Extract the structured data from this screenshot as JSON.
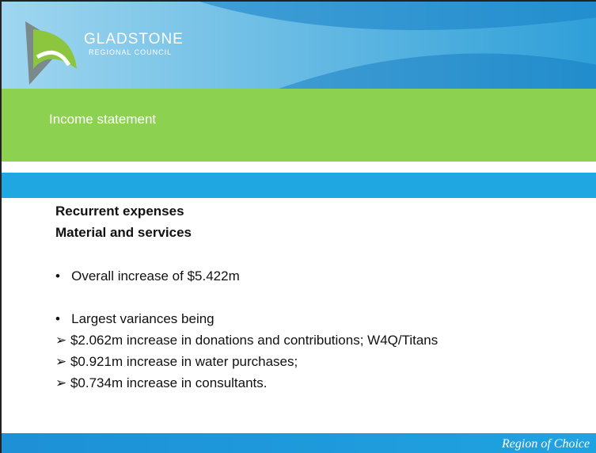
{
  "header": {
    "org_name": "GLADSTONE",
    "org_subtitle": "REGIONAL COUNCIL"
  },
  "section_title": "Income statement",
  "content": {
    "heading1": "Recurrent expenses",
    "heading2": "Material and services",
    "bullets": [
      "Overall increase of $5.422m",
      "Largest variances being"
    ],
    "sub_items": [
      "$2.062m increase in donations and contributions; W4Q/Titans",
      "$0.921m increase in water purchases;",
      "$0.734m increase in consultants."
    ]
  },
  "footer": {
    "tagline": "Region of Choice"
  }
}
